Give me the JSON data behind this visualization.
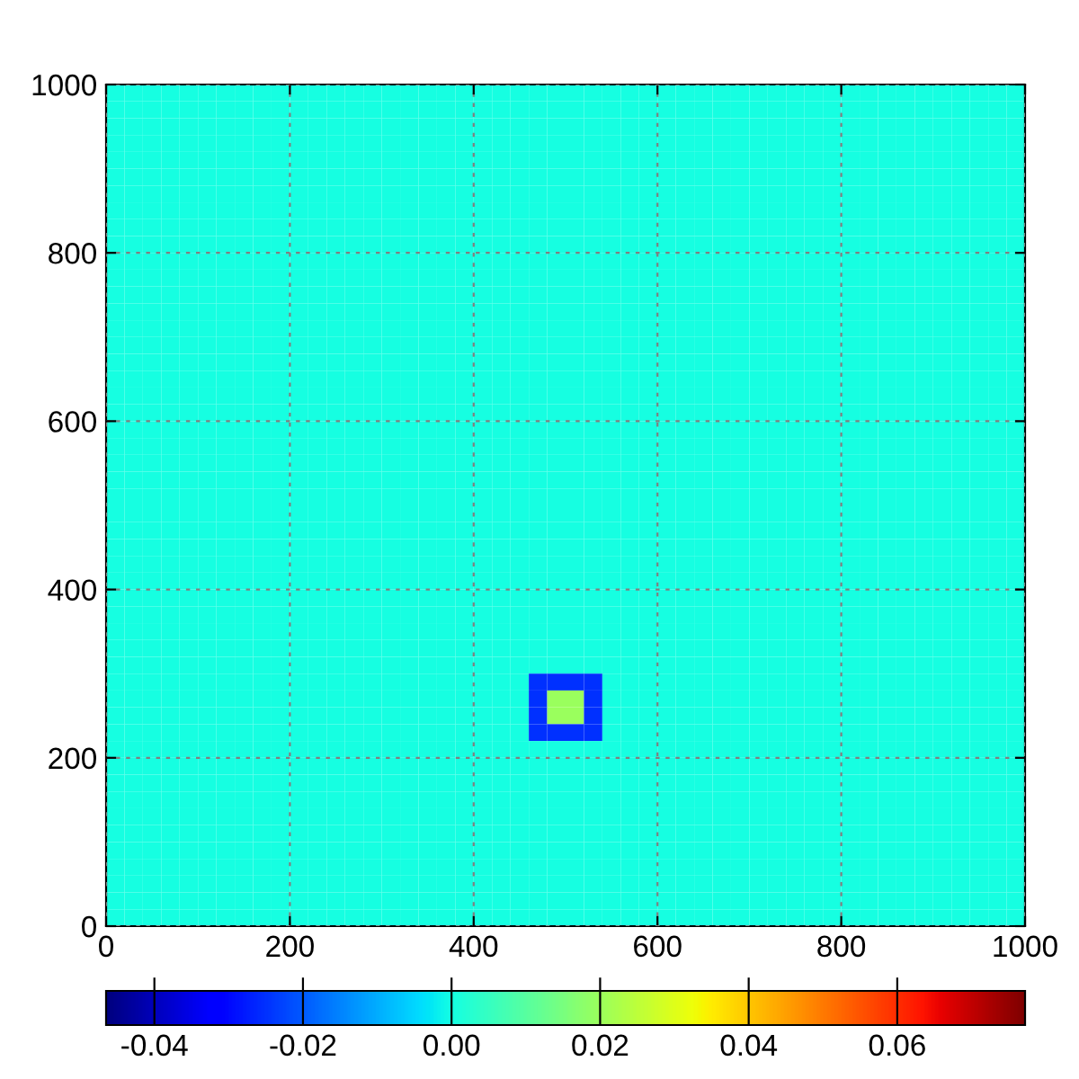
{
  "chart_data": {
    "type": "heatmap",
    "xlim": [
      0,
      1000
    ],
    "ylim": [
      0,
      1000
    ],
    "xticks": [
      0,
      200,
      400,
      600,
      800,
      1000
    ],
    "yticks": [
      0,
      200,
      400,
      600,
      800,
      1000
    ],
    "clim": [
      -0.0465,
      0.0772
    ],
    "cticks": [
      {
        "value": -0.04,
        "label": "-0.04"
      },
      {
        "value": -0.02,
        "label": "-0.02"
      },
      {
        "value": 0,
        "label": "0.00"
      },
      {
        "value": 0.02,
        "label": "0.02"
      },
      {
        "value": 0.04,
        "label": "0.04"
      },
      {
        "value": 0.06,
        "label": "0.06"
      }
    ],
    "grid": true,
    "cells": [
      [
        0,
        0,
        0,
        0,
        0,
        0,
        0,
        0,
        0,
        0,
        0,
        0,
        0,
        0,
        0,
        0,
        0,
        0,
        0,
        0,
        0,
        0,
        0,
        0,
        0,
        0,
        0,
        0,
        0,
        0,
        0,
        0,
        0,
        0,
        0,
        0,
        0,
        0,
        0,
        0,
        0,
        0,
        0,
        0,
        0,
        0,
        0,
        0,
        0,
        0
      ],
      [
        0,
        0,
        0,
        0,
        0,
        0,
        0,
        0,
        0,
        0,
        0,
        0,
        0,
        0,
        0,
        0,
        0,
        0,
        0,
        0,
        0,
        0,
        0,
        0,
        0,
        0,
        0,
        0,
        0,
        0,
        0,
        0,
        0,
        0,
        0,
        0,
        0,
        0,
        0,
        0,
        0,
        0,
        0,
        0,
        0,
        0,
        0,
        0,
        0,
        0
      ],
      [
        0,
        0,
        0,
        0,
        0,
        0,
        0,
        0,
        0,
        0,
        0,
        0,
        0,
        0,
        0,
        0,
        0,
        0,
        0,
        0,
        0,
        0,
        0,
        0,
        0,
        0,
        0,
        0,
        0,
        0,
        0,
        0,
        0,
        0,
        0,
        0,
        0,
        0,
        0,
        0,
        0,
        0,
        0,
        0,
        0,
        0,
        0,
        0,
        0,
        0
      ],
      [
        0,
        0,
        0,
        0,
        0,
        0,
        0,
        0,
        0,
        0,
        0,
        0,
        0,
        0,
        0,
        0,
        0,
        0,
        0,
        0,
        0,
        0,
        0,
        0,
        0,
        0,
        0,
        0,
        0,
        0,
        0,
        0,
        0,
        0,
        0,
        0,
        0,
        0,
        0,
        0,
        0,
        0,
        0,
        0,
        0,
        0,
        0,
        0,
        0,
        0
      ],
      [
        0,
        0,
        0,
        0,
        0,
        0,
        0,
        0,
        0,
        0,
        0,
        0,
        0,
        0,
        0,
        0,
        0,
        0,
        0,
        0,
        0,
        0,
        0,
        0,
        0,
        0,
        0,
        0,
        0,
        0,
        0,
        0,
        0,
        0,
        0,
        0,
        0,
        0,
        0,
        0,
        0,
        0,
        0,
        0,
        0,
        0,
        0,
        0,
        0,
        0
      ],
      [
        0,
        0,
        0,
        0,
        0,
        0,
        0,
        0,
        0,
        0,
        0,
        0,
        0,
        0,
        0,
        0,
        0,
        0,
        0,
        0,
        0,
        0,
        0,
        0,
        0,
        0,
        0,
        0,
        0,
        0,
        0,
        0,
        0,
        0,
        0,
        0,
        0,
        0,
        0,
        0,
        0,
        0,
        0,
        0,
        0,
        0,
        0,
        0,
        0,
        0
      ],
      [
        0,
        0,
        0,
        0,
        0,
        0,
        0,
        0,
        0,
        0,
        0,
        0,
        0,
        0,
        0,
        0,
        0,
        0,
        0,
        0,
        0,
        0,
        0,
        0,
        0,
        0,
        0,
        0,
        0,
        0,
        0,
        0,
        0,
        0,
        0,
        0,
        0,
        0,
        0,
        0,
        0,
        0,
        0,
        0,
        0,
        0,
        0,
        0,
        0,
        0
      ],
      [
        0,
        0,
        0,
        0,
        0,
        0,
        0,
        0,
        0,
        0,
        0,
        0,
        0,
        0,
        0,
        0,
        0,
        0,
        0,
        0,
        0,
        0,
        0,
        0,
        0,
        0,
        0,
        0,
        0,
        0,
        0,
        0,
        0,
        0,
        0,
        0,
        0,
        0,
        0,
        0,
        0,
        0,
        0,
        0,
        0,
        0,
        0,
        0,
        0,
        0
      ],
      [
        0,
        0,
        0,
        0,
        0,
        0,
        0,
        0,
        0,
        0,
        0,
        0,
        0,
        0,
        0,
        0,
        0,
        0,
        0,
        0,
        0,
        0,
        0,
        0,
        0,
        0,
        0,
        0,
        0,
        0,
        0,
        0,
        0,
        0,
        0,
        0,
        0,
        0,
        0,
        0,
        0,
        0,
        0,
        0,
        0,
        0,
        0,
        0,
        0,
        0
      ],
      [
        0,
        0,
        0,
        0,
        0,
        0,
        0,
        0,
        0,
        0,
        0,
        0,
        0,
        0,
        0,
        0,
        0,
        0,
        0,
        0,
        0,
        0,
        0,
        0,
        0,
        0,
        0,
        0,
        0,
        0,
        0,
        0,
        0,
        0,
        0,
        0,
        0,
        0,
        0,
        0,
        0,
        0,
        0,
        0,
        0,
        0,
        0,
        0,
        0,
        0
      ],
      [
        0,
        0,
        0,
        0,
        0,
        0,
        0,
        0,
        0,
        0,
        0,
        0,
        0,
        0,
        0,
        0,
        0,
        0,
        0,
        0,
        0,
        0,
        0,
        0,
        0,
        0,
        0,
        0,
        0,
        0,
        0,
        0,
        0,
        0,
        0,
        0,
        0,
        0,
        0,
        0,
        0,
        0,
        0,
        0,
        0,
        0,
        0,
        0,
        0,
        0
      ],
      [
        0,
        0,
        0,
        0,
        0,
        0,
        0,
        0,
        0,
        0,
        0,
        0,
        0,
        0,
        0,
        0,
        0,
        0,
        0,
        0,
        0,
        0,
        0,
        0,
        0,
        0,
        0,
        0,
        0,
        0,
        0,
        0,
        0,
        0,
        0,
        0,
        0,
        0,
        0,
        0,
        0,
        0,
        0,
        0,
        0,
        0,
        0,
        0,
        0,
        0
      ],
      [
        0,
        0,
        0,
        0,
        0,
        0,
        0,
        0,
        0,
        0,
        0,
        0,
        0,
        0,
        0,
        0,
        0,
        0,
        0,
        0,
        0,
        0,
        0,
        0,
        0,
        0,
        0,
        0,
        0,
        0,
        0,
        0,
        0,
        0,
        0,
        0,
        0,
        0,
        0,
        0,
        0,
        0,
        0,
        0,
        0,
        0,
        0,
        0,
        0,
        0
      ],
      [
        0,
        0,
        0,
        0,
        0,
        0,
        0,
        0,
        0,
        0,
        0,
        0,
        0,
        0,
        0,
        0,
        0,
        0,
        0,
        0,
        0,
        0,
        0,
        0,
        0,
        0,
        0,
        0,
        0,
        0,
        0,
        0,
        0,
        0,
        0,
        0,
        0,
        0,
        0,
        0,
        0,
        0,
        0,
        0,
        0,
        0,
        0,
        0,
        0,
        0
      ],
      [
        0,
        0,
        0,
        0,
        0,
        0,
        0,
        0,
        0,
        0,
        0,
        0,
        0,
        0,
        0,
        0,
        0,
        0,
        0,
        0,
        0,
        0,
        0,
        0,
        0,
        0,
        0,
        0,
        0,
        0,
        0,
        0,
        0,
        0,
        0,
        0,
        0,
        0,
        0,
        0,
        0,
        0,
        0,
        0,
        0,
        0,
        0,
        0,
        0,
        0
      ],
      [
        0,
        0,
        0,
        0,
        0,
        0,
        0,
        0,
        0,
        0,
        0,
        0,
        0,
        0,
        0,
        0,
        0,
        0,
        0,
        0,
        0,
        0,
        0,
        0,
        0,
        0,
        0,
        0,
        0,
        0,
        0,
        0,
        0,
        0,
        0,
        0,
        0,
        0,
        0,
        0,
        0,
        0,
        0,
        0,
        0,
        0,
        0,
        0,
        0,
        0
      ],
      [
        0,
        0,
        0,
        0,
        0,
        0,
        0,
        0,
        0,
        0,
        0,
        0,
        0,
        0,
        0,
        0,
        0,
        0,
        0,
        0,
        0,
        0,
        0,
        0,
        0,
        0,
        0,
        0,
        0,
        0,
        0,
        0,
        0,
        0,
        0,
        0,
        0,
        0,
        0,
        0,
        0,
        0,
        0,
        0,
        0,
        0,
        0,
        0,
        0,
        0
      ],
      [
        0,
        0,
        0,
        0,
        0,
        0,
        0,
        0,
        0,
        0,
        0,
        0,
        0,
        0,
        0,
        0,
        0,
        0,
        0,
        0,
        0,
        0,
        0,
        0,
        0,
        0,
        0,
        0,
        0,
        0,
        0,
        0,
        0,
        0,
        0,
        0,
        0,
        0,
        0,
        0,
        0,
        0,
        0,
        0,
        0,
        0,
        0,
        0,
        0,
        0
      ],
      [
        0,
        0,
        0,
        0,
        0,
        0,
        0,
        0,
        0,
        0,
        0,
        0,
        0,
        0,
        0,
        0,
        0,
        0,
        0,
        0,
        0,
        0,
        0,
        0,
        0,
        0,
        0,
        0,
        0,
        0,
        0,
        0,
        0,
        0,
        0,
        0,
        0,
        0,
        0,
        0,
        0,
        0,
        0,
        0,
        0,
        0,
        0,
        0,
        0,
        0
      ],
      [
        0,
        0,
        0,
        0,
        0,
        0,
        0,
        0,
        0,
        0,
        0,
        0,
        0,
        0,
        0,
        0,
        0,
        0,
        0,
        0,
        0,
        0,
        0,
        0,
        0,
        0,
        0,
        0,
        0,
        0,
        0,
        0,
        0,
        0,
        0,
        0,
        0,
        0,
        0,
        0,
        0,
        0,
        0,
        0,
        0,
        0,
        0,
        0,
        0,
        0
      ],
      [
        0,
        0,
        0,
        0,
        0,
        0,
        0,
        0,
        0,
        0,
        0,
        0,
        0,
        0,
        0,
        0,
        0,
        0,
        0,
        0,
        0,
        0,
        0,
        0,
        0,
        0,
        0,
        0,
        0,
        0,
        0,
        0,
        0,
        0,
        0,
        0,
        0,
        0,
        0,
        0,
        0,
        0,
        0,
        0,
        0,
        0,
        0,
        0,
        0,
        0
      ],
      [
        0,
        0,
        0,
        0,
        0,
        0,
        0,
        0,
        0,
        0,
        0,
        0,
        0,
        0,
        0,
        0,
        0,
        0,
        0,
        0,
        0,
        0,
        0,
        0,
        0,
        0,
        0,
        0,
        0,
        0,
        0,
        0,
        0,
        0,
        0,
        0,
        0,
        0,
        0,
        0,
        0,
        0,
        0,
        0,
        0,
        0,
        0,
        0,
        0,
        0
      ],
      [
        0,
        0,
        0,
        0,
        0,
        0,
        0,
        0,
        0,
        0,
        0,
        0,
        0,
        0,
        0,
        0,
        0,
        0,
        0,
        0,
        0,
        0,
        0,
        0,
        0,
        0,
        0,
        0,
        0,
        0,
        0,
        0,
        0,
        0,
        0,
        0,
        0,
        0,
        0,
        0,
        0,
        0,
        0,
        0,
        0,
        0,
        0,
        0,
        0,
        0
      ],
      [
        0,
        0,
        0,
        0,
        0,
        0,
        0,
        0,
        0,
        0,
        0,
        0,
        0,
        0,
        0,
        0,
        0,
        0,
        0,
        0,
        0,
        0,
        0,
        0,
        0,
        0,
        0,
        0,
        0,
        0,
        0,
        0,
        0,
        0,
        0,
        0,
        0,
        0,
        0,
        0,
        0,
        0,
        0,
        0,
        0,
        0,
        0,
        0,
        0,
        0
      ],
      [
        0,
        0,
        0,
        0,
        0,
        0,
        0,
        0,
        0,
        0,
        0,
        0,
        0,
        0,
        0,
        0,
        0,
        0,
        0,
        0,
        0,
        0,
        0,
        0,
        0,
        0,
        0,
        0,
        0,
        0,
        0,
        0,
        0,
        0,
        0,
        0,
        0,
        0,
        0,
        0,
        0,
        0,
        0,
        0,
        0,
        0,
        0,
        0,
        0,
        0
      ],
      [
        0,
        0,
        0,
        0,
        0,
        0,
        0,
        0,
        0,
        0,
        0,
        0,
        0,
        0,
        0,
        0,
        0,
        0,
        0,
        0,
        0,
        0,
        0,
        0,
        0,
        0,
        0,
        0,
        0,
        0,
        0,
        0,
        0,
        0,
        0,
        0,
        0,
        0,
        0,
        0,
        0,
        0,
        0,
        0,
        0,
        0,
        0,
        0,
        0,
        0
      ],
      [
        0,
        0,
        0,
        0,
        0,
        0,
        0,
        0,
        0,
        0,
        0,
        0,
        0,
        0,
        0,
        0,
        0,
        0,
        0,
        0,
        0,
        0,
        0,
        0,
        0,
        0,
        0,
        0,
        0,
        0,
        0,
        0,
        0,
        0,
        0,
        0,
        0,
        0,
        0,
        0,
        0,
        0,
        0,
        0,
        0,
        0,
        0,
        0,
        0,
        0
      ],
      [
        0,
        0,
        0,
        0,
        0,
        0,
        0,
        0,
        0,
        0,
        0,
        0,
        0,
        0,
        0,
        0,
        0,
        0,
        0,
        0,
        0,
        0,
        0,
        0,
        0,
        0,
        0,
        0,
        0,
        0,
        0,
        0,
        0,
        0,
        0,
        0,
        0,
        0,
        0,
        0,
        0,
        0,
        0,
        0,
        0,
        0,
        0,
        0,
        0,
        0
      ],
      [
        0,
        0,
        0,
        0,
        0,
        0,
        0,
        0,
        0,
        0,
        0,
        0,
        0,
        0,
        0,
        0,
        0,
        0,
        0,
        0,
        0,
        0,
        0,
        0,
        0,
        0,
        0,
        0,
        0,
        0,
        0,
        0,
        0,
        0,
        0,
        0,
        0,
        0,
        0,
        0,
        0,
        0,
        0,
        0,
        0,
        0,
        0,
        0,
        0,
        0
      ],
      [
        0,
        0,
        0,
        0,
        0,
        0,
        0,
        0,
        0,
        0,
        0,
        0,
        0,
        0,
        0,
        0,
        0,
        0,
        0,
        0,
        0,
        0,
        0,
        0,
        0,
        0,
        0,
        0,
        0,
        0,
        0,
        0,
        0,
        0,
        0,
        0,
        0,
        0,
        0,
        0,
        0,
        0,
        0,
        0,
        0,
        0,
        0,
        0,
        0,
        0
      ],
      [
        0,
        0,
        0,
        0,
        0,
        0,
        0,
        0,
        0,
        0,
        0,
        0,
        0,
        0,
        0,
        0,
        0,
        0,
        0,
        0,
        0,
        0,
        0,
        0,
        0,
        0,
        0,
        0,
        0,
        0,
        0,
        0,
        0,
        0,
        0,
        0,
        0,
        0,
        0,
        0,
        0,
        0,
        0,
        0,
        0,
        0,
        0,
        0,
        0,
        0
      ],
      [
        0,
        0,
        0,
        0,
        0,
        0,
        0,
        0,
        0,
        0,
        0,
        0,
        0,
        0,
        0,
        0,
        0,
        0,
        0,
        0,
        0,
        0,
        0,
        0,
        0,
        0,
        0,
        0,
        0,
        0,
        0,
        0,
        0,
        0,
        0,
        0,
        0,
        0,
        0,
        0,
        0,
        0,
        0,
        0,
        0,
        0,
        0,
        0,
        0,
        0
      ],
      [
        0,
        0,
        0,
        0,
        0,
        0,
        0,
        0,
        0,
        0,
        0,
        0,
        0,
        0,
        0,
        0,
        0,
        0,
        0,
        0,
        0,
        0,
        0,
        0,
        0,
        0,
        0,
        0,
        0,
        0,
        0,
        0,
        0,
        0,
        0,
        0,
        0,
        0,
        0,
        0,
        0,
        0,
        0,
        0,
        0,
        0,
        0,
        0,
        0,
        0
      ],
      [
        0,
        0,
        0,
        0,
        0,
        0,
        0,
        0,
        0,
        0,
        0,
        0,
        0,
        0,
        0,
        0,
        0,
        0,
        0,
        0,
        0,
        0,
        0,
        0,
        0,
        0,
        0,
        0,
        0,
        0,
        0,
        0,
        0,
        0,
        0,
        0,
        0,
        0,
        0,
        0,
        0,
        0,
        0,
        0,
        0,
        0,
        0,
        0,
        0,
        0
      ],
      [
        0,
        0,
        0,
        0,
        0,
        0,
        0,
        0,
        0,
        0,
        0,
        0,
        0,
        0,
        0,
        0,
        0,
        0,
        0,
        0,
        0,
        0,
        0,
        0,
        0,
        0,
        0,
        0,
        0,
        0,
        0,
        0,
        0,
        0,
        0,
        0,
        0,
        0,
        0,
        0,
        0,
        0,
        0,
        0,
        0,
        0,
        0,
        0,
        0,
        0
      ],
      [
        0,
        0,
        0,
        0,
        0,
        0,
        0,
        0,
        0,
        0,
        0,
        0,
        0,
        0,
        0,
        0,
        0,
        0,
        0,
        0,
        0,
        0,
        0,
        -0.025,
        -0.025,
        -0.025,
        -0.025,
        0,
        0,
        0,
        0,
        0,
        0,
        0,
        0,
        0,
        0,
        0,
        0,
        0,
        0,
        0,
        0,
        0,
        0,
        0,
        0,
        0,
        0,
        0
      ],
      [
        0,
        0,
        0,
        0,
        0,
        0,
        0,
        0,
        0,
        0,
        0,
        0,
        0,
        0,
        0,
        0,
        0,
        0,
        0,
        0,
        0,
        0,
        0,
        -0.025,
        0.02,
        0.02,
        -0.025,
        0,
        0,
        0,
        0,
        0,
        0,
        0,
        0,
        0,
        0,
        0,
        0,
        0,
        0,
        0,
        0,
        0,
        0,
        0,
        0,
        0,
        0,
        0
      ],
      [
        0,
        0,
        0,
        0,
        0,
        0,
        0,
        0,
        0,
        0,
        0,
        0,
        0,
        0,
        0,
        0,
        0,
        0,
        0,
        0,
        0,
        0,
        0,
        -0.025,
        0.02,
        0.02,
        -0.025,
        0,
        0,
        0,
        0,
        0,
        0,
        0,
        0,
        0,
        0,
        0,
        0,
        0,
        0,
        0,
        0,
        0,
        0,
        0,
        0,
        0,
        0,
        0
      ],
      [
        0,
        0,
        0,
        0,
        0,
        0,
        0,
        0,
        0,
        0,
        0,
        0,
        0,
        0,
        0,
        0,
        0,
        0,
        0,
        0,
        0,
        0,
        0,
        -0.025,
        -0.025,
        -0.025,
        -0.025,
        0,
        0,
        0,
        0,
        0,
        0,
        0,
        0,
        0,
        0,
        0,
        0,
        0,
        0,
        0,
        0,
        0,
        0,
        0,
        0,
        0,
        0,
        0
      ],
      [
        0,
        0,
        0,
        0,
        0,
        0,
        0,
        0,
        0,
        0,
        0,
        0,
        0,
        0,
        0,
        0,
        0,
        0,
        0,
        0,
        0,
        0,
        0,
        0,
        0,
        0,
        0,
        0,
        0,
        0,
        0,
        0,
        0,
        0,
        0,
        0,
        0,
        0,
        0,
        0,
        0,
        0,
        0,
        0,
        0,
        0,
        0,
        0,
        0,
        0
      ],
      [
        0,
        0,
        0,
        0,
        0,
        0,
        0,
        0,
        0,
        0,
        0,
        0,
        0,
        0,
        0,
        0,
        0,
        0,
        0,
        0,
        0,
        0,
        0,
        0,
        0,
        0,
        0,
        0,
        0,
        0,
        0,
        0,
        0,
        0,
        0,
        0,
        0,
        0,
        0,
        0,
        0,
        0,
        0,
        0,
        0,
        0,
        0,
        0,
        0,
        0
      ],
      [
        0,
        0,
        0,
        0,
        0,
        0,
        0,
        0,
        0,
        0,
        0,
        0,
        0,
        0,
        0,
        0,
        0,
        0,
        0,
        0,
        0,
        0,
        0,
        0,
        0,
        0,
        0,
        0,
        0,
        0,
        0,
        0,
        0,
        0,
        0,
        0,
        0,
        0,
        0,
        0,
        0,
        0,
        0,
        0,
        0,
        0,
        0,
        0,
        0,
        0
      ],
      [
        0,
        0,
        0,
        0,
        0,
        0,
        0,
        0,
        0,
        0,
        0,
        0,
        0,
        0,
        0,
        0,
        0,
        0,
        0,
        0,
        0,
        0,
        0,
        0,
        0,
        0,
        0,
        0,
        0,
        0,
        0,
        0,
        0,
        0,
        0,
        0,
        0,
        0,
        0,
        0,
        0,
        0,
        0,
        0,
        0,
        0,
        0,
        0,
        0,
        0
      ],
      [
        0,
        0,
        0,
        0,
        0,
        0,
        0,
        0,
        0,
        0,
        0,
        0,
        0,
        0,
        0,
        0,
        0,
        0,
        0,
        0,
        0,
        0,
        0,
        0,
        0,
        0,
        0,
        0,
        0,
        0,
        0,
        0,
        0,
        0,
        0,
        0,
        0,
        0,
        0,
        0,
        0,
        0,
        0,
        0,
        0,
        0,
        0,
        0,
        0,
        0
      ],
      [
        0,
        0,
        0,
        0,
        0,
        0,
        0,
        0,
        0,
        0,
        0,
        0,
        0,
        0,
        0,
        0,
        0,
        0,
        0,
        0,
        0,
        0,
        0,
        0,
        0,
        0,
        0,
        0,
        0,
        0,
        0,
        0,
        0,
        0,
        0,
        0,
        0,
        0,
        0,
        0,
        0,
        0,
        0,
        0,
        0,
        0,
        0,
        0,
        0,
        0
      ],
      [
        0,
        0,
        0,
        0,
        0,
        0,
        0,
        0,
        0,
        0,
        0,
        0,
        0,
        0,
        0,
        0,
        0,
        0,
        0,
        0,
        0,
        0,
        0,
        0,
        0,
        0,
        0,
        0,
        0,
        0,
        0,
        0,
        0,
        0,
        0,
        0,
        0,
        0,
        0,
        0,
        0,
        0,
        0,
        0,
        0,
        0,
        0,
        0,
        0,
        0
      ],
      [
        0,
        0,
        0,
        0,
        0,
        0,
        0,
        0,
        0,
        0,
        0,
        0,
        0,
        0,
        0,
        0,
        0,
        0,
        0,
        0,
        0,
        0,
        0,
        0,
        0,
        0,
        0,
        0,
        0,
        0,
        0,
        0,
        0,
        0,
        0,
        0,
        0,
        0,
        0,
        0,
        0,
        0,
        0,
        0,
        0,
        0,
        0,
        0,
        0,
        0
      ],
      [
        0,
        0,
        0,
        0,
        0,
        0,
        0,
        0,
        0,
        0,
        0,
        0,
        0,
        0,
        0,
        0,
        0,
        0,
        0,
        0,
        0,
        0,
        0,
        0,
        0,
        0,
        0,
        0,
        0,
        0,
        0,
        0,
        0,
        0,
        0,
        0,
        0,
        0,
        0,
        0,
        0,
        0,
        0,
        0,
        0,
        0,
        0,
        0,
        0,
        0
      ],
      [
        0,
        0,
        0,
        0,
        0,
        0,
        0,
        0,
        0,
        0,
        0,
        0,
        0,
        0,
        0,
        0,
        0,
        0,
        0,
        0,
        0,
        0,
        0,
        0,
        0,
        0,
        0,
        0,
        0,
        0,
        0,
        0,
        0,
        0,
        0,
        0,
        0,
        0,
        0,
        0,
        0,
        0,
        0,
        0,
        0,
        0,
        0,
        0,
        0,
        0
      ],
      [
        0,
        0,
        0,
        0,
        0,
        0,
        0,
        0,
        0,
        0,
        0,
        0,
        0,
        0,
        0,
        0,
        0,
        0,
        0,
        0,
        0,
        0,
        0,
        0,
        0,
        0,
        0,
        0,
        0,
        0,
        0,
        0,
        0,
        0,
        0,
        0,
        0,
        0,
        0,
        0,
        0,
        0,
        0,
        0,
        0,
        0,
        0,
        0,
        0,
        0
      ]
    ]
  }
}
